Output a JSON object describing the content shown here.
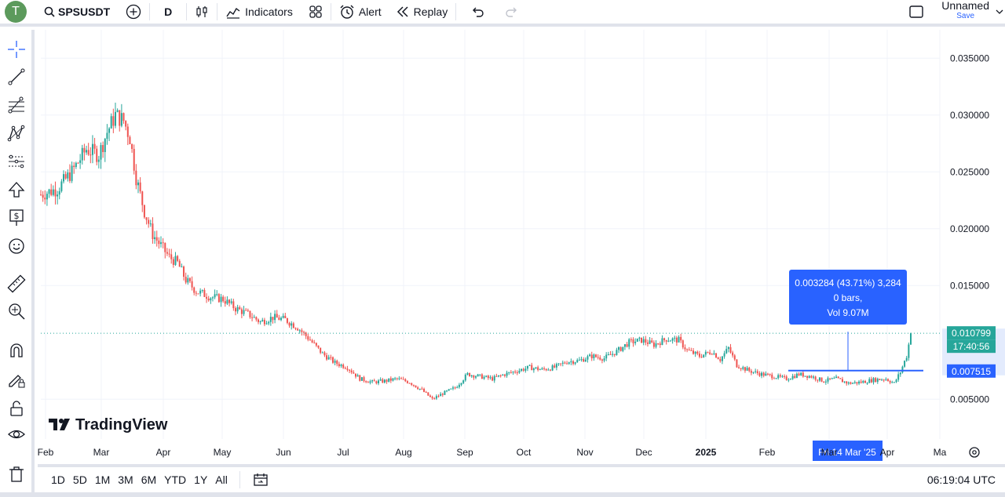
{
  "toolbar": {
    "avatar_letter": "T",
    "symbol": "SPSUSDT",
    "interval": "D",
    "indicators_label": "Indicators",
    "alert_label": "Alert",
    "replay_label": "Replay",
    "layout_name": "Unnamed",
    "save_label": "Save"
  },
  "left_tools": [
    "crosshair-icon",
    "trendline-icon",
    "fib-icon",
    "pattern-icon",
    "projection-icon",
    "arrow-icon",
    "price-label-icon",
    "sticker-icon",
    "ruler-icon",
    "zoom-icon",
    "magnet-icon",
    "lock-draw-icon",
    "lock-icon",
    "eye-icon",
    "trash-icon"
  ],
  "bottom": {
    "ranges": [
      "1D",
      "5D",
      "1M",
      "3M",
      "6M",
      "YTD",
      "1Y",
      "All"
    ],
    "time": "06:19:04 UTC"
  },
  "chart_data": {
    "type": "candlestick",
    "symbol": "SPSUSDT",
    "price_axis": {
      "ticks": [
        "0.035000",
        "0.030000",
        "0.025000",
        "0.020000",
        "0.015000",
        "0.005000"
      ],
      "ylim": [
        0.0015,
        0.0375
      ]
    },
    "time_axis": {
      "ticks": [
        "Feb",
        "Mar",
        "Apr",
        "May",
        "Jun",
        "Jul",
        "Aug",
        "Sep",
        "Oct",
        "Nov",
        "Dec",
        "2025",
        "Feb",
        "Mar",
        "Apr",
        "Ma"
      ],
      "crosshair_label": "Fri 14 Mar '25"
    },
    "current_price": "0.010799",
    "countdown": "17:40:56",
    "level_price": "0.007515",
    "colors": {
      "up": "#26a69a",
      "down": "#ef5350",
      "accent": "#2962ff"
    },
    "measure_tooltip": {
      "line1": "0.003284 (43.71%) 3,284",
      "line2": "0 bars,",
      "line3": "Vol 9.07M"
    },
    "watermark": "TradingView",
    "close_anchors": [
      [
        0,
        0.023
      ],
      [
        8,
        0.0235
      ],
      [
        15,
        0.025
      ],
      [
        22,
        0.027
      ],
      [
        28,
        0.0265
      ],
      [
        32,
        0.0285
      ],
      [
        36,
        0.03
      ],
      [
        40,
        0.0295
      ],
      [
        43,
        0.028
      ],
      [
        46,
        0.0245
      ],
      [
        50,
        0.0215
      ],
      [
        54,
        0.0195
      ],
      [
        58,
        0.0185
      ],
      [
        62,
        0.0175
      ],
      [
        66,
        0.017
      ],
      [
        70,
        0.0155
      ],
      [
        75,
        0.0145
      ],
      [
        82,
        0.014
      ],
      [
        88,
        0.0138
      ],
      [
        94,
        0.013
      ],
      [
        100,
        0.0125
      ],
      [
        106,
        0.0118
      ],
      [
        112,
        0.0122
      ],
      [
        118,
        0.012
      ],
      [
        124,
        0.0113
      ],
      [
        130,
        0.0102
      ],
      [
        136,
        0.009
      ],
      [
        142,
        0.0082
      ],
      [
        148,
        0.0078
      ],
      [
        154,
        0.0068
      ],
      [
        160,
        0.0065
      ],
      [
        166,
        0.0066
      ],
      [
        172,
        0.0068
      ],
      [
        178,
        0.0065
      ],
      [
        184,
        0.0058
      ],
      [
        189,
        0.005
      ],
      [
        194,
        0.0055
      ],
      [
        200,
        0.006
      ],
      [
        206,
        0.0072
      ],
      [
        212,
        0.007
      ],
      [
        218,
        0.0068
      ],
      [
        224,
        0.0072
      ],
      [
        230,
        0.0075
      ],
      [
        236,
        0.0078
      ],
      [
        242,
        0.0076
      ],
      [
        248,
        0.0078
      ],
      [
        254,
        0.0083
      ],
      [
        260,
        0.0084
      ],
      [
        266,
        0.0088
      ],
      [
        272,
        0.0086
      ],
      [
        278,
        0.0092
      ],
      [
        284,
        0.01
      ],
      [
        290,
        0.0102
      ],
      [
        296,
        0.0098
      ],
      [
        302,
        0.0103
      ],
      [
        308,
        0.0102
      ],
      [
        312,
        0.0093
      ],
      [
        318,
        0.0088
      ],
      [
        324,
        0.0092
      ],
      [
        328,
        0.0085
      ],
      [
        332,
        0.0095
      ],
      [
        336,
        0.008
      ],
      [
        342,
        0.0075
      ],
      [
        348,
        0.0072
      ],
      [
        354,
        0.007
      ],
      [
        360,
        0.0068
      ],
      [
        366,
        0.0072
      ],
      [
        372,
        0.007
      ],
      [
        378,
        0.0066
      ],
      [
        384,
        0.0068
      ],
      [
        390,
        0.0064
      ],
      [
        396,
        0.0065
      ],
      [
        402,
        0.0067
      ],
      [
        408,
        0.0068
      ],
      [
        412,
        0.0064
      ],
      [
        415,
        0.0074
      ],
      [
        418,
        0.0088
      ],
      [
        420,
        0.0108
      ]
    ]
  }
}
